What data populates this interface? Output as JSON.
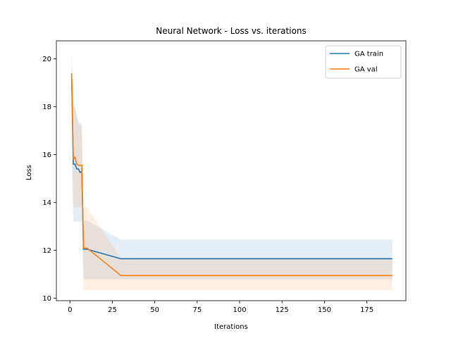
{
  "chart_data": {
    "type": "line",
    "title": "Neural Network - Loss vs. iterations",
    "xlabel": "Iterations",
    "ylabel": "Loss",
    "xlim": [
      -8,
      198
    ],
    "ylim": [
      9.9,
      20.75
    ],
    "xticks": [
      0,
      25,
      50,
      75,
      100,
      125,
      150,
      175
    ],
    "yticks": [
      10,
      12,
      14,
      16,
      18,
      20
    ],
    "grid": false,
    "legend_position": "upper right",
    "series": [
      {
        "name": "GA train",
        "color": "#1f77b4",
        "x": [
          1,
          2,
          3,
          4,
          5,
          6,
          7,
          8,
          9,
          10,
          30,
          190
        ],
        "y": [
          19.2,
          15.6,
          15.6,
          15.4,
          15.4,
          15.25,
          15.3,
          12.05,
          12.05,
          12.05,
          11.65,
          11.65
        ],
        "lower": [
          16.0,
          13.2,
          13.2,
          13.2,
          13.2,
          13.2,
          13.2,
          10.8,
          10.8,
          10.8,
          10.8,
          10.8
        ],
        "upper": [
          20.3,
          18.0,
          18.0,
          17.6,
          17.4,
          17.3,
          17.3,
          13.25,
          13.25,
          13.25,
          12.45,
          12.45
        ]
      },
      {
        "name": "GA val",
        "color": "#ff7f0e",
        "x": [
          1,
          2,
          3,
          4,
          5,
          6,
          7,
          8,
          9,
          10,
          30,
          190
        ],
        "y": [
          19.4,
          15.8,
          15.9,
          15.6,
          15.55,
          15.55,
          15.55,
          12.1,
          12.1,
          12.1,
          10.95,
          10.95
        ],
        "lower": [
          18.4,
          13.8,
          13.8,
          13.8,
          13.8,
          13.8,
          13.8,
          10.35,
          10.35,
          10.35,
          10.35,
          10.35
        ],
        "upper": [
          20.0,
          18.0,
          18.0,
          17.6,
          17.3,
          17.2,
          17.2,
          13.8,
          13.8,
          13.8,
          11.7,
          11.7
        ]
      }
    ]
  }
}
